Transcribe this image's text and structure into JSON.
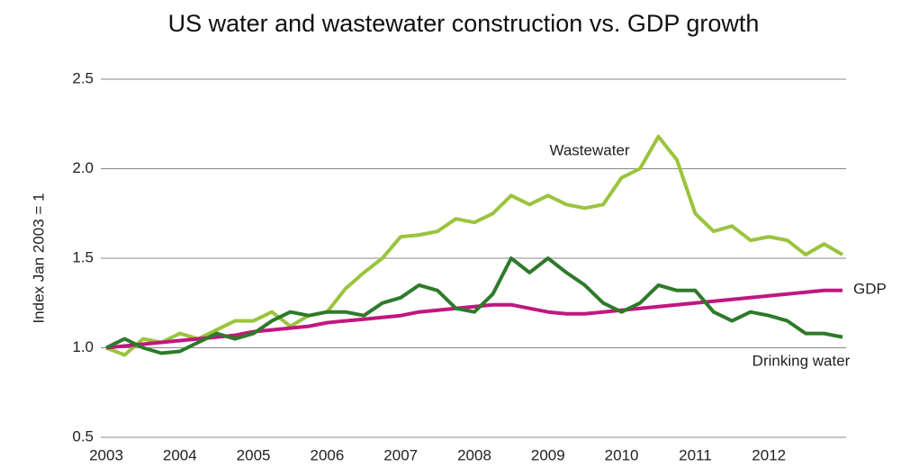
{
  "chart_data": {
    "type": "line",
    "title": "US water and wastewater construction vs. GDP growth",
    "y_label": "Index Jan 2003 = 1",
    "x": [
      2003,
      2003.25,
      2003.5,
      2003.75,
      2004,
      2004.25,
      2004.5,
      2004.75,
      2005,
      2005.25,
      2005.5,
      2005.75,
      2006,
      2006.25,
      2006.5,
      2006.75,
      2007,
      2007.25,
      2007.5,
      2007.75,
      2008,
      2008.25,
      2008.5,
      2008.75,
      2009,
      2009.25,
      2009.5,
      2009.75,
      2010,
      2010.25,
      2010.5,
      2010.75,
      2011,
      2011.25,
      2011.5,
      2011.75,
      2012,
      2012.25,
      2012.5,
      2012.75,
      2013
    ],
    "series": [
      {
        "name": "Wastewater",
        "color": "#9ac43c",
        "values": [
          1.0,
          0.96,
          1.05,
          1.03,
          1.08,
          1.05,
          1.1,
          1.15,
          1.15,
          1.2,
          1.12,
          1.18,
          1.2,
          1.33,
          1.42,
          1.5,
          1.62,
          1.63,
          1.65,
          1.72,
          1.7,
          1.75,
          1.85,
          1.8,
          1.85,
          1.8,
          1.78,
          1.8,
          1.95,
          2.0,
          2.18,
          2.05,
          1.75,
          1.65,
          1.68,
          1.6,
          1.62,
          1.6,
          1.52,
          1.58,
          1.52
        ]
      },
      {
        "name": "GDP",
        "color": "#c0177f",
        "values": [
          1.0,
          1.01,
          1.02,
          1.03,
          1.04,
          1.05,
          1.06,
          1.07,
          1.09,
          1.1,
          1.11,
          1.12,
          1.14,
          1.15,
          1.16,
          1.17,
          1.18,
          1.2,
          1.21,
          1.22,
          1.23,
          1.24,
          1.24,
          1.22,
          1.2,
          1.19,
          1.19,
          1.2,
          1.21,
          1.22,
          1.23,
          1.24,
          1.25,
          1.26,
          1.27,
          1.28,
          1.29,
          1.3,
          1.31,
          1.32,
          1.32
        ]
      },
      {
        "name": "Drinking water",
        "color": "#2e7a2a",
        "values": [
          1.0,
          1.05,
          1.0,
          0.97,
          0.98,
          1.03,
          1.08,
          1.05,
          1.08,
          1.15,
          1.2,
          1.18,
          1.2,
          1.2,
          1.18,
          1.25,
          1.28,
          1.35,
          1.32,
          1.22,
          1.2,
          1.3,
          1.5,
          1.42,
          1.5,
          1.42,
          1.35,
          1.25,
          1.2,
          1.25,
          1.35,
          1.32,
          1.32,
          1.2,
          1.15,
          1.2,
          1.18,
          1.15,
          1.08,
          1.08,
          1.06
        ]
      }
    ],
    "xlim": [
      2003,
      2013
    ],
    "xticks": [
      2003,
      2004,
      2005,
      2006,
      2007,
      2008,
      2009,
      2010,
      2011,
      2012
    ],
    "ylim": [
      0.5,
      2.5
    ],
    "yticks": [
      {
        "value": 0.5,
        "label": "0.5"
      },
      {
        "value": 1,
        "label": "1.0"
      },
      {
        "value": 1.5,
        "label": "1.5"
      },
      {
        "value": 2,
        "label": "2.0"
      },
      {
        "value": 2.5,
        "label": "2.5"
      }
    ],
    "grid": true
  }
}
